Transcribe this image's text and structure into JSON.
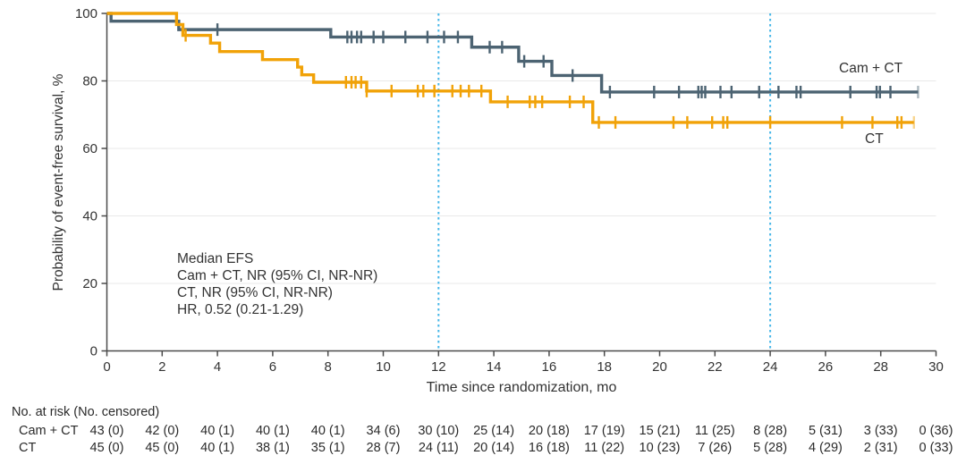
{
  "figure": {
    "annotation": {
      "lines": [
        "Median EFS",
        "Cam + CT, NR (95% CI, NR-NR)",
        "CT, NR (95% CI, NR-NR)",
        "HR, 0.52 (0.21-1.29)"
      ]
    },
    "curve_labels": {
      "cam_ct": "Cam + CT",
      "ct": "CT"
    }
  },
  "chart_data": {
    "type": "line",
    "subtype": "kaplan-meier-step",
    "title": "",
    "xlabel": "Time since randomization, mo",
    "ylabel": "Probability of event-free survival, %",
    "xlim": [
      0,
      30
    ],
    "ylim": [
      0,
      100
    ],
    "xticks": [
      0,
      2,
      4,
      6,
      8,
      10,
      12,
      14,
      16,
      18,
      20,
      22,
      24,
      26,
      28,
      30
    ],
    "yticks": [
      0,
      20,
      40,
      60,
      80,
      100
    ],
    "grid": "horizontal",
    "gridline_color": "#e9e9e9",
    "axis_color": "#4b4b4b",
    "reference_lines_x": [
      12,
      24
    ],
    "reference_line_color": "#47b7e8",
    "series": [
      {
        "name": "Cam + CT",
        "color": "#4c6372",
        "steps": [
          [
            0,
            100
          ],
          [
            0.15,
            97.7
          ],
          [
            2.6,
            95.2
          ],
          [
            8.1,
            93.0
          ],
          [
            13.2,
            90.0
          ],
          [
            14.9,
            85.8
          ],
          [
            16.1,
            81.6
          ],
          [
            17.9,
            76.7
          ]
        ],
        "end_x": 29.35,
        "censor_marks_x": [
          4.0,
          8.7,
          8.85,
          9.05,
          9.2,
          9.65,
          10.0,
          10.8,
          11.6,
          12.2,
          12.7,
          13.85,
          14.3,
          15.1,
          15.8,
          16.85,
          18.2,
          19.8,
          20.7,
          21.4,
          21.52,
          21.65,
          22.2,
          22.6,
          23.6,
          24.3,
          24.95,
          25.1,
          26.9,
          27.85,
          27.97,
          28.35
        ],
        "end_censor_x": 29.35
      },
      {
        "name": "CT",
        "color": "#f1a208",
        "steps": [
          [
            0,
            100
          ],
          [
            2.52,
            96.7
          ],
          [
            2.75,
            93.5
          ],
          [
            3.75,
            91.2
          ],
          [
            4.08,
            88.7
          ],
          [
            5.63,
            86.3
          ],
          [
            6.9,
            84.1
          ],
          [
            7.05,
            81.8
          ],
          [
            7.48,
            79.6
          ],
          [
            9.4,
            77.0
          ],
          [
            13.88,
            73.8
          ],
          [
            17.58,
            67.7
          ]
        ],
        "end_x": 29.2,
        "censor_marks_x": [
          2.85,
          8.65,
          8.85,
          9.0,
          9.2,
          9.4,
          10.3,
          11.25,
          11.45,
          11.85,
          12.5,
          12.8,
          13.1,
          13.55,
          14.5,
          15.3,
          15.5,
          15.75,
          16.75,
          17.25,
          17.8,
          18.4,
          20.5,
          21.0,
          21.9,
          22.3,
          22.45,
          24.0,
          26.6,
          27.7,
          28.6,
          28.75
        ],
        "end_censor_x": 29.2
      }
    ],
    "risk_table": {
      "header": "No. at risk (No. censored)",
      "time_points": [
        0,
        2,
        4,
        6,
        8,
        10,
        12,
        14,
        16,
        18,
        20,
        22,
        24,
        26,
        28,
        30
      ],
      "rows": [
        {
          "label": "Cam + CT",
          "values": [
            "43 (0)",
            "42 (0)",
            "40 (1)",
            "40 (1)",
            "40 (1)",
            "34 (6)",
            "30 (10)",
            "25 (14)",
            "20 (18)",
            "17 (19)",
            "15 (21)",
            "11 (25)",
            "8 (28)",
            "5 (31)",
            "3 (33)",
            "0 (36)"
          ]
        },
        {
          "label": "CT",
          "values": [
            "45 (0)",
            "45 (0)",
            "40 (1)",
            "38 (1)",
            "35 (1)",
            "28 (7)",
            "24 (11)",
            "20 (14)",
            "16 (18)",
            "11 (22)",
            "10 (23)",
            "7 (26)",
            "5 (28)",
            "4 (29)",
            "2 (31)",
            "0 (33)"
          ]
        }
      ]
    }
  }
}
